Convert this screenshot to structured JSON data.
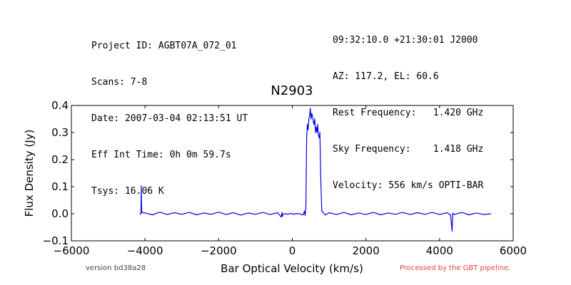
{
  "header": {
    "left": [
      "Project ID: AGBT07A_072_01",
      "Scans: 7-8",
      "Date: 2007-03-04 02:13:51 UT",
      "Eff Int Time: 0h 0m 59.7s",
      "Tsys: 16.06 K"
    ],
    "right": [
      "09:32:10.0 +21:30:01 J2000",
      "AZ: 117.2, EL: 60.6",
      "Rest Frequency:   1.420 GHz",
      "Sky Frequency:    1.418 GHz",
      "Velocity: 556 km/s OPTI-BAR"
    ]
  },
  "footer": {
    "version": "version bd38a28",
    "pipeline": "Processed by the GBT pipeline.",
    "pipeline_color": "#e8403a"
  },
  "chart_data": {
    "type": "line",
    "title": "N2903",
    "xlabel": "Bar Optical Velocity (km/s)",
    "ylabel": "Flux Density (Jy)",
    "xlim": [
      -6000,
      6000
    ],
    "ylim": [
      -0.1,
      0.4
    ],
    "xticks": [
      -6000,
      -4000,
      -2000,
      0,
      2000,
      4000,
      6000
    ],
    "xtick_labels": [
      "−6000",
      "−4000",
      "−2000",
      "0",
      "2000",
      "4000",
      "6000"
    ],
    "yticks": [
      -0.1,
      0.0,
      0.1,
      0.2,
      0.3,
      0.4
    ],
    "ytick_labels": [
      "−0.1",
      "0.0",
      "0.1",
      "0.2",
      "0.3",
      "0.4"
    ],
    "grid": false,
    "line_color": "#0000ee",
    "series": [
      {
        "x": [
          -4150,
          -4110,
          -4100,
          -4090,
          -4000,
          -3800,
          -3600,
          -3400,
          -3200,
          -3000,
          -2800,
          -2600,
          -2400,
          -2200,
          -2000,
          -1800,
          -1600,
          -1400,
          -1200,
          -1000,
          -800,
          -600,
          -400,
          -300,
          -280,
          -270,
          -250,
          -200,
          -150,
          -120,
          -100,
          -60,
          -30,
          0,
          50,
          100,
          150,
          200,
          250,
          300,
          330,
          350,
          370,
          390,
          410,
          430,
          450,
          470,
          490,
          510,
          530,
          550,
          570,
          590,
          610,
          630,
          650,
          670,
          690,
          710,
          730,
          750,
          770,
          800,
          850,
          900,
          1000,
          1200,
          1400,
          1600,
          1800,
          2000,
          2200,
          2400,
          2600,
          2800,
          3000,
          3200,
          3400,
          3600,
          3800,
          4000,
          4200,
          4300,
          4340,
          4360,
          4400,
          4600,
          4800,
          5000,
          5200,
          5400
        ],
        "y": [
          0.0,
          0.0,
          0.104,
          0.005,
          0.003,
          -0.004,
          0.006,
          -0.003,
          0.004,
          -0.002,
          0.005,
          -0.004,
          0.003,
          -0.002,
          0.006,
          -0.003,
          0.004,
          -0.005,
          0.003,
          -0.002,
          0.005,
          -0.003,
          0.004,
          -0.012,
          0.005,
          -0.01,
          -0.002,
          0.0,
          0.0,
          -0.002,
          0.0,
          0.0,
          0.001,
          0.0,
          -0.002,
          0.001,
          0.0,
          0.0,
          -0.003,
          -0.004,
          0.01,
          -0.006,
          0.03,
          0.28,
          0.33,
          0.31,
          0.35,
          0.36,
          0.39,
          0.35,
          0.37,
          0.36,
          0.34,
          0.33,
          0.35,
          0.3,
          0.32,
          0.3,
          0.33,
          0.29,
          0.28,
          0.3,
          0.15,
          0.01,
          0.003,
          -0.005,
          0.004,
          -0.003,
          0.005,
          -0.004,
          0.003,
          -0.003,
          0.005,
          -0.004,
          0.003,
          -0.002,
          0.005,
          -0.003,
          0.004,
          -0.002,
          0.005,
          -0.003,
          0.004,
          -0.004,
          -0.064,
          0.002,
          -0.003,
          0.005,
          -0.004,
          0.003,
          -0.003,
          0.0
        ]
      }
    ]
  }
}
